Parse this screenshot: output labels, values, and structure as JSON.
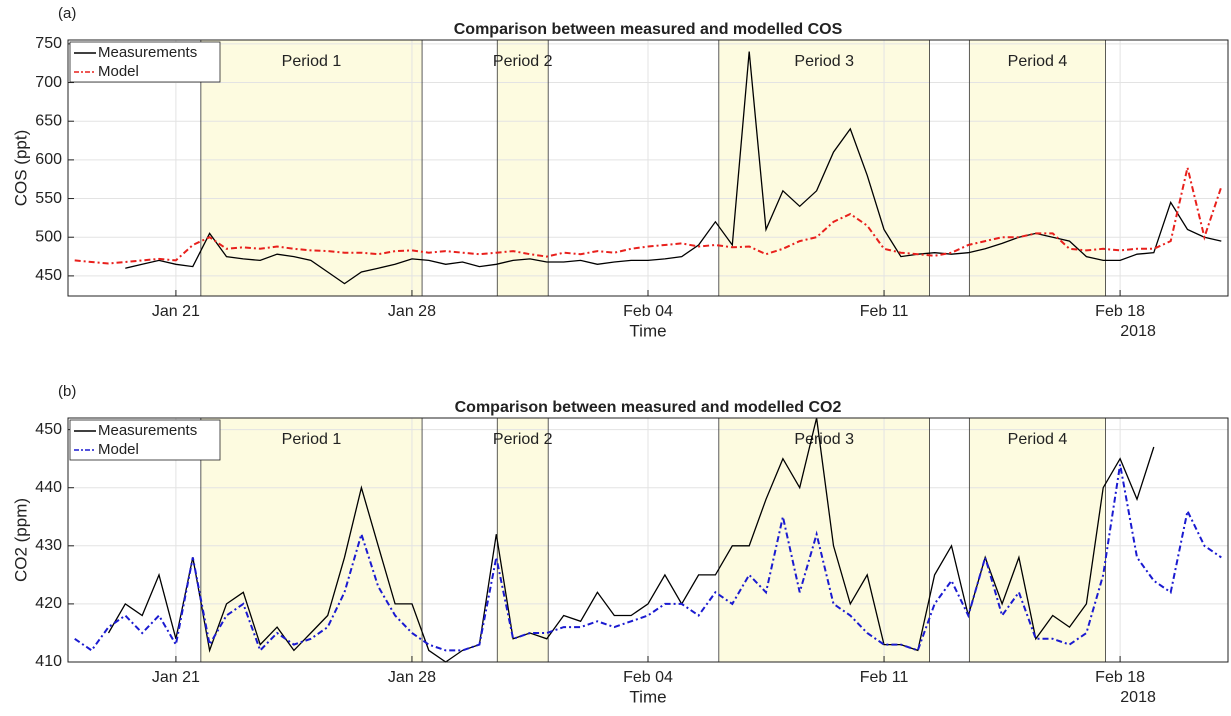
{
  "chart_data": [
    {
      "type": "line",
      "panel_label": "(a)",
      "title": "Comparison between measured and modelled COS",
      "x_label": "Time",
      "y_label": "COS (ppt)",
      "x_year_label": "2018",
      "xlim": [
        17.8,
        52.2
      ],
      "xticks": [
        {
          "value": 21,
          "label": "Jan 21"
        },
        {
          "value": 28,
          "label": "Jan 28"
        },
        {
          "value": 35,
          "label": "Feb 04"
        },
        {
          "value": 42,
          "label": "Feb 11"
        },
        {
          "value": 49,
          "label": "Feb 18"
        }
      ],
      "ylim": [
        424,
        755
      ],
      "yticks": [
        450,
        500,
        550,
        600,
        650,
        700,
        750
      ],
      "grid": true,
      "legend": "top-left",
      "periods": [
        {
          "label": "Period 1",
          "start": 21.74,
          "end": 28.3
        },
        {
          "label": "Period 2",
          "start": 30.53,
          "end": 32.04
        },
        {
          "label": "Period 3",
          "start": 37.1,
          "end": 43.35
        },
        {
          "label": "Period 4",
          "start": 44.53,
          "end": 48.57
        }
      ],
      "x": [
        18,
        18.5,
        19,
        19.5,
        20,
        20.5,
        21,
        21.5,
        22,
        22.5,
        23,
        23.5,
        24,
        24.5,
        25,
        25.5,
        26,
        26.5,
        27,
        27.5,
        28,
        28.5,
        29,
        29.5,
        30,
        30.5,
        31,
        31.5,
        32,
        32.5,
        33,
        33.5,
        34,
        34.5,
        35,
        35.5,
        36,
        36.5,
        37,
        37.5,
        38,
        38.5,
        39,
        39.5,
        40,
        40.5,
        41,
        41.5,
        42,
        42.5,
        43,
        43.5,
        44,
        44.5,
        45,
        45.5,
        46,
        46.5,
        47,
        47.5,
        48,
        48.5,
        49,
        49.5,
        50,
        50.5,
        51,
        51.5,
        52
      ],
      "series": [
        {
          "name": "Measurements",
          "color": "#000000",
          "dash": "solid",
          "values": [
            null,
            null,
            null,
            460,
            465,
            470,
            465,
            462,
            505,
            475,
            472,
            470,
            478,
            475,
            470,
            455,
            440,
            455,
            460,
            465,
            472,
            470,
            465,
            468,
            462,
            465,
            470,
            472,
            468,
            468,
            470,
            465,
            468,
            470,
            470,
            472,
            475,
            490,
            520,
            490,
            740,
            510,
            560,
            540,
            560,
            610,
            640,
            580,
            510,
            475,
            478,
            480,
            478,
            480,
            485,
            492,
            500,
            505,
            500,
            495,
            475,
            470,
            470,
            478,
            480,
            545,
            510,
            500,
            495
          ]
        },
        {
          "name": "Model",
          "color": "#e8201c",
          "dash": "dashed",
          "values": [
            470,
            468,
            466,
            468,
            470,
            472,
            470,
            490,
            500,
            485,
            487,
            485,
            488,
            485,
            483,
            482,
            480,
            480,
            478,
            482,
            483,
            480,
            482,
            480,
            478,
            480,
            482,
            478,
            475,
            480,
            478,
            482,
            480,
            485,
            488,
            490,
            492,
            488,
            490,
            487,
            488,
            478,
            485,
            495,
            500,
            520,
            530,
            515,
            485,
            480,
            478,
            476,
            480,
            490,
            495,
            500,
            500,
            505,
            505,
            485,
            483,
            485,
            483,
            485,
            485,
            495,
            590,
            500,
            565
          ]
        }
      ]
    },
    {
      "type": "line",
      "panel_label": "(b)",
      "title": "Comparison between measured and modelled CO2",
      "x_label": "Time",
      "y_label": "CO2 (ppm)",
      "x_year_label": "2018",
      "xlim": [
        17.8,
        52.2
      ],
      "xticks": [
        {
          "value": 21,
          "label": "Jan 21"
        },
        {
          "value": 28,
          "label": "Jan 28"
        },
        {
          "value": 35,
          "label": "Feb 04"
        },
        {
          "value": 42,
          "label": "Feb 11"
        },
        {
          "value": 49,
          "label": "Feb 18"
        }
      ],
      "ylim": [
        410,
        452
      ],
      "yticks": [
        410,
        420,
        430,
        440,
        450
      ],
      "grid": true,
      "legend": "top-left",
      "periods": [
        {
          "label": "Period 1",
          "start": 21.74,
          "end": 28.3
        },
        {
          "label": "Period 2",
          "start": 30.53,
          "end": 32.04
        },
        {
          "label": "Period 3",
          "start": 37.1,
          "end": 43.35
        },
        {
          "label": "Period 4",
          "start": 44.53,
          "end": 48.57
        }
      ],
      "x": [
        18,
        18.5,
        19,
        19.5,
        20,
        20.5,
        21,
        21.5,
        22,
        22.5,
        23,
        23.5,
        24,
        24.5,
        25,
        25.5,
        26,
        26.5,
        27,
        27.5,
        28,
        28.5,
        29,
        29.5,
        30,
        30.5,
        31,
        31.5,
        32,
        32.5,
        33,
        33.5,
        34,
        34.5,
        35,
        35.5,
        36,
        36.5,
        37,
        37.5,
        38,
        38.5,
        39,
        39.5,
        40,
        40.5,
        41,
        41.5,
        42,
        42.5,
        43,
        43.5,
        44,
        44.5,
        45,
        45.5,
        46,
        46.5,
        47,
        47.5,
        48,
        48.5,
        49,
        49.5,
        50,
        50.5,
        51,
        51.5,
        52
      ],
      "series": [
        {
          "name": "Measurements",
          "color": "#000000",
          "dash": "solid",
          "values": [
            null,
            null,
            415,
            420,
            418,
            425,
            414,
            428,
            412,
            420,
            422,
            413,
            416,
            412,
            415,
            418,
            428,
            440,
            430,
            420,
            420,
            412,
            410,
            412,
            413,
            432,
            414,
            415,
            414,
            418,
            417,
            422,
            418,
            418,
            420,
            425,
            420,
            425,
            425,
            430,
            430,
            438,
            445,
            440,
            452,
            430,
            420,
            425,
            413,
            413,
            412,
            425,
            430,
            418,
            428,
            420,
            428,
            414,
            418,
            416,
            420,
            440,
            445,
            438,
            447,
            null,
            null,
            null,
            null
          ]
        },
        {
          "name": "Model",
          "color": "#1a1ad0",
          "dash": "dashed",
          "values": [
            414,
            412,
            416,
            418,
            415,
            418,
            413,
            428,
            413,
            418,
            420,
            412,
            415,
            413,
            414,
            416,
            422,
            432,
            423,
            418,
            415,
            413,
            412,
            412,
            413,
            428,
            414,
            415,
            415,
            416,
            416,
            417,
            416,
            417,
            418,
            420,
            420,
            418,
            422,
            420,
            425,
            422,
            435,
            422,
            432,
            420,
            418,
            415,
            413,
            413,
            412,
            420,
            424,
            418,
            428,
            418,
            422,
            414,
            414,
            413,
            415,
            425,
            444,
            428,
            424,
            422,
            436,
            430,
            428
          ]
        }
      ]
    }
  ]
}
